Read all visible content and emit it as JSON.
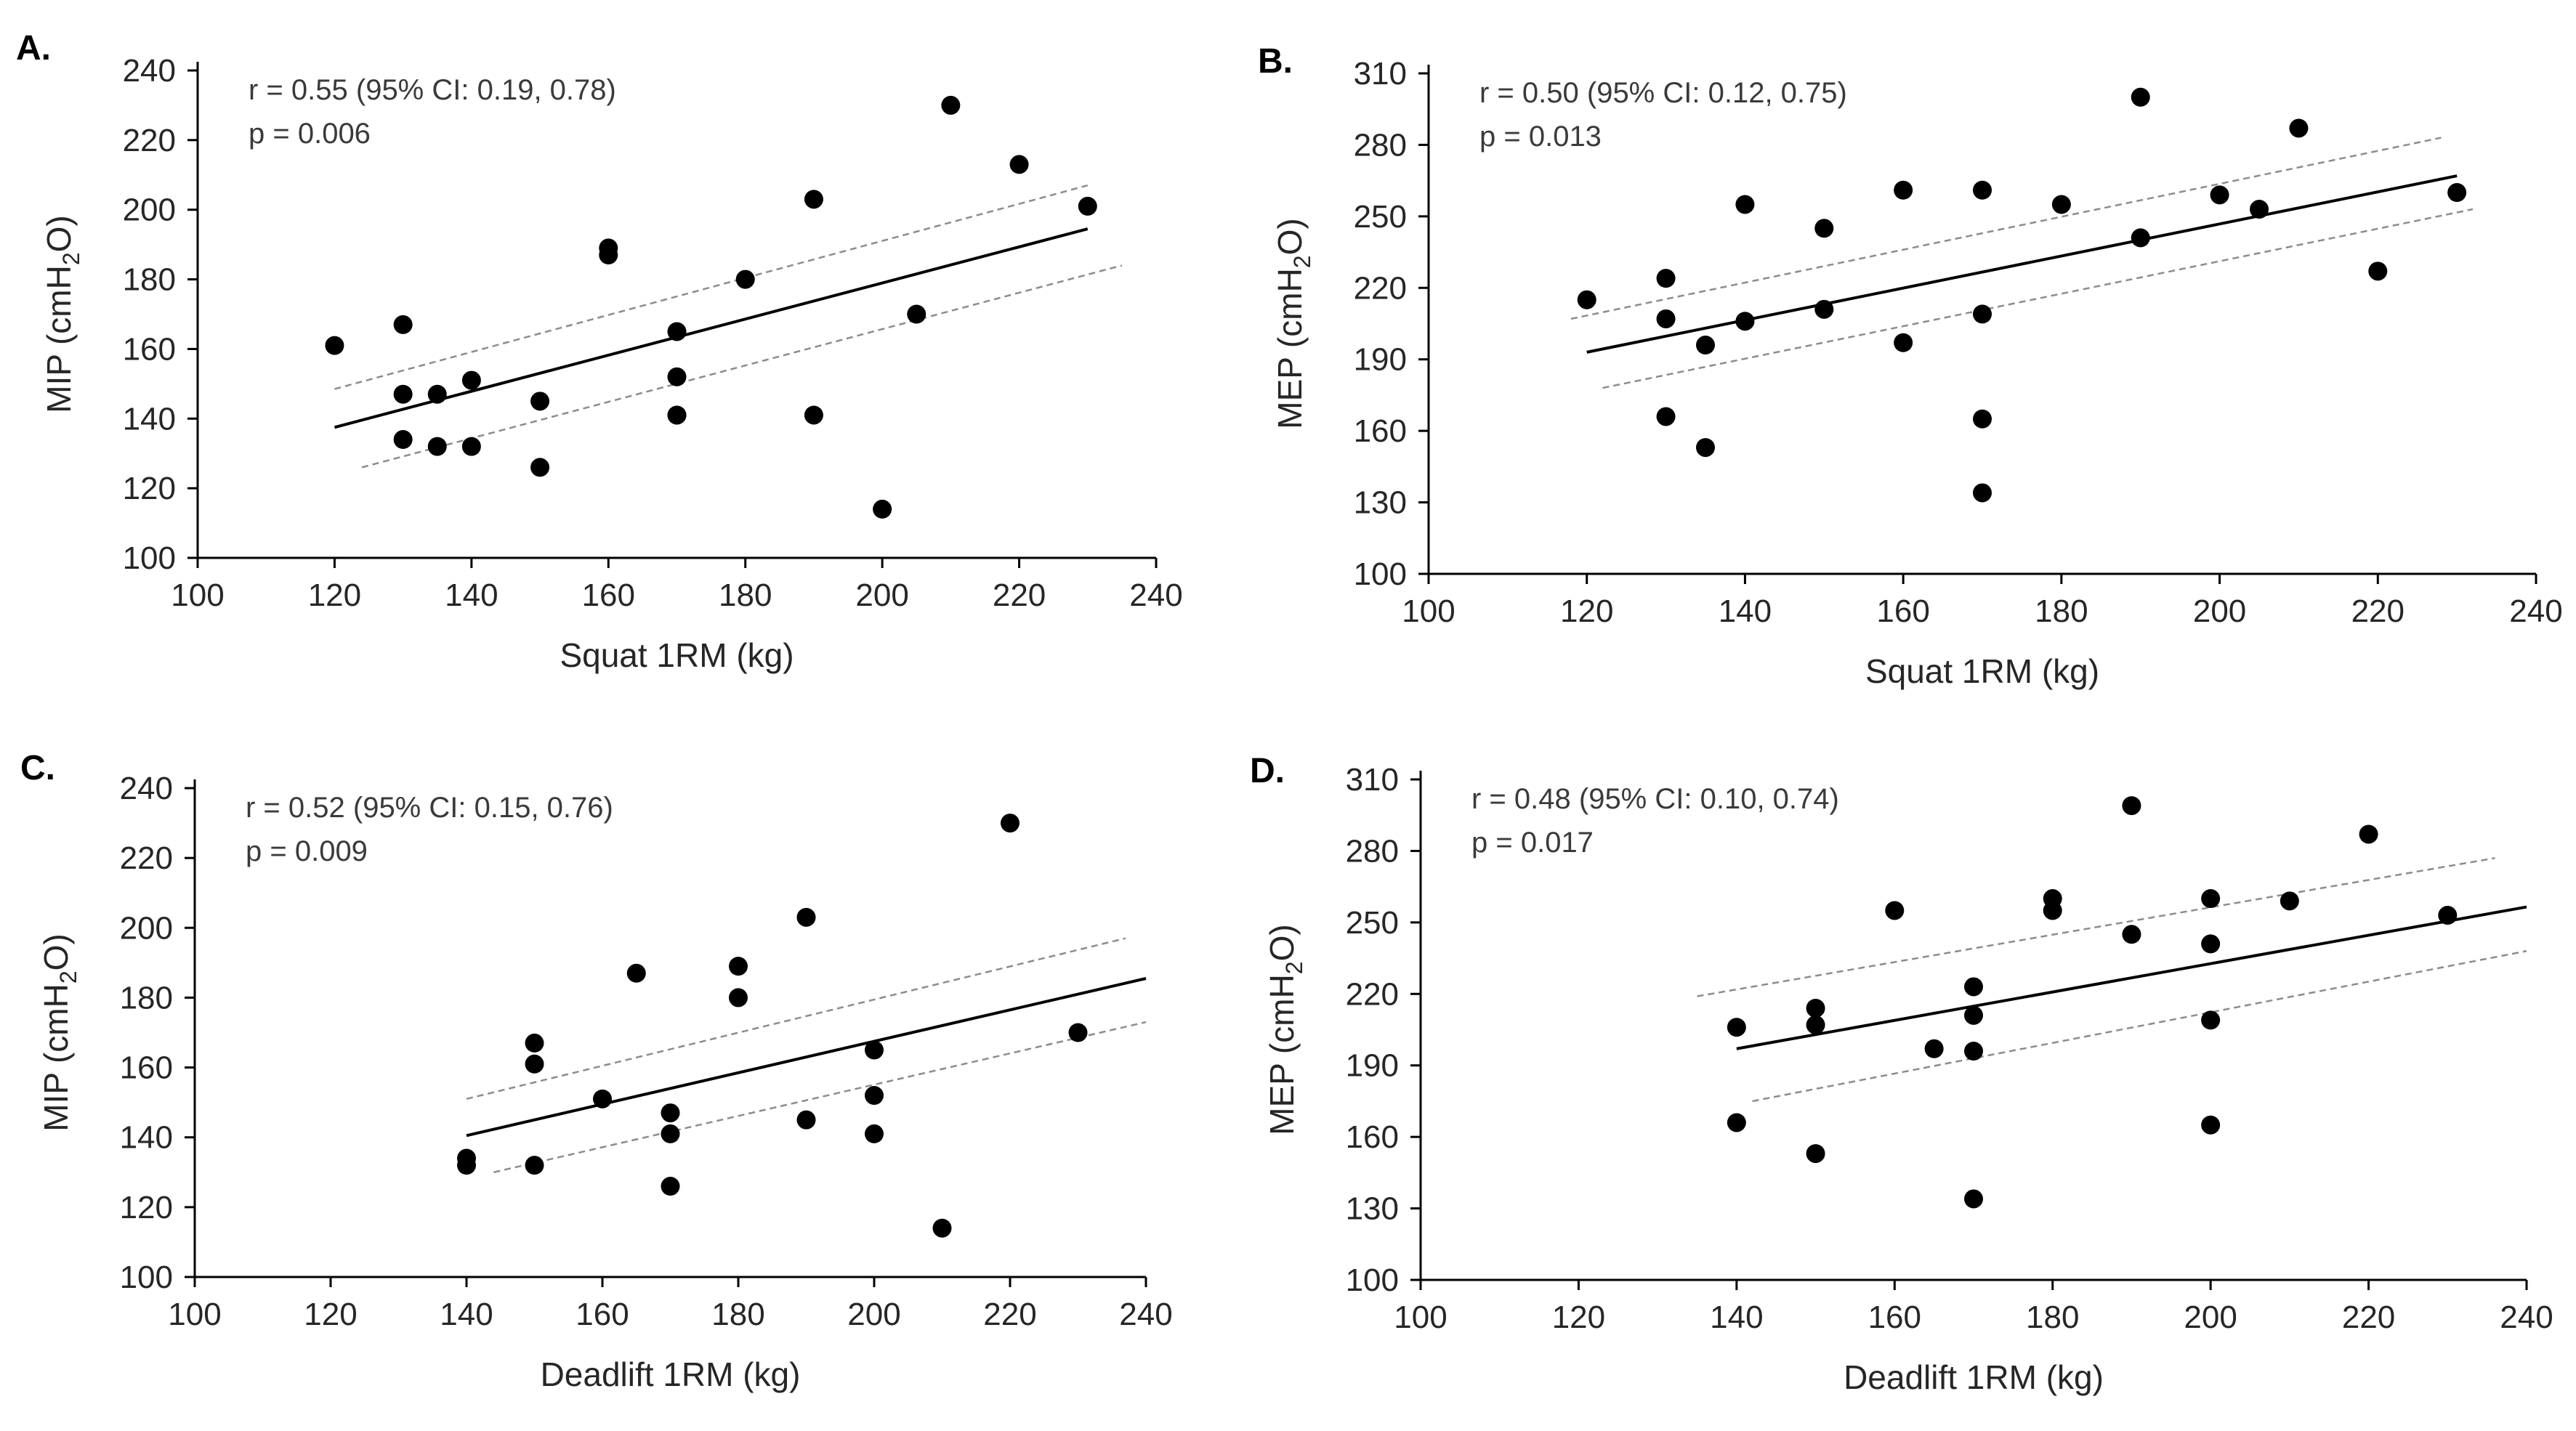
{
  "chart_data": [
    {
      "type": "scatter",
      "panel_label": "A.",
      "xlabel": "Squat 1RM (kg)",
      "ylabel": "MIP (cmH",
      "ylabel_sub": "2",
      "ylabel_end": "O)",
      "xlim": [
        100,
        240
      ],
      "ylim": [
        100,
        240
      ],
      "xticks": [
        "100",
        "120",
        "140",
        "160",
        "180",
        "200",
        "220",
        "240"
      ],
      "yticks": [
        "100",
        "120",
        "140",
        "160",
        "180",
        "200",
        "220",
        "240"
      ],
      "stats": [
        "r = 0.55 (95% CI: 0.19, 0.78)",
        "p = 0.006"
      ],
      "x": [
        120,
        130,
        130,
        130,
        135,
        135,
        140,
        140,
        150,
        150,
        160,
        160,
        170,
        170,
        170,
        170,
        180,
        190,
        190,
        200,
        205,
        210,
        220,
        230
      ],
      "y": [
        161,
        167,
        147,
        134,
        147,
        132,
        151,
        132,
        145,
        126,
        189,
        187,
        165,
        152,
        141,
        141,
        180,
        203,
        141,
        114,
        170,
        230,
        213,
        201
      ],
      "fit": {
        "x": [
          120,
          230
        ],
        "y": [
          137.5,
          194.5
        ]
      },
      "ci_upper": {
        "x": [
          120,
          230
        ],
        "y": [
          148.5,
          207
        ]
      },
      "ci_lower": {
        "x": [
          124,
          235
        ],
        "y": [
          126,
          184
        ]
      }
    },
    {
      "type": "scatter",
      "panel_label": "B.",
      "xlabel": "Squat 1RM (kg)",
      "ylabel": "MEP (cmH",
      "ylabel_sub": "2",
      "ylabel_end": "O)",
      "xlim": [
        100,
        240
      ],
      "ylim": [
        100,
        310
      ],
      "xticks": [
        "100",
        "120",
        "140",
        "160",
        "180",
        "200",
        "220",
        "240"
      ],
      "yticks": [
        "100",
        "130",
        "160",
        "190",
        "220",
        "250",
        "280",
        "310"
      ],
      "stats": [
        "r = 0.50 (95% CI: 0.12, 0.75)",
        "p = 0.013"
      ],
      "x": [
        120,
        130,
        130,
        130,
        135,
        135,
        140,
        140,
        150,
        150,
        160,
        160,
        170,
        170,
        170,
        170,
        180,
        190,
        190,
        200,
        205,
        210,
        220,
        230
      ],
      "y": [
        215,
        224,
        207,
        166,
        196,
        153,
        255,
        206,
        245,
        211,
        261,
        197,
        261,
        209,
        165,
        134,
        255,
        300,
        241,
        259,
        253,
        287,
        227,
        260
      ],
      "fit": {
        "x": [
          120,
          230
        ],
        "y": [
          193,
          267
        ]
      },
      "ci_upper": {
        "x": [
          118,
          228
        ],
        "y": [
          207,
          283
        ]
      },
      "ci_lower": {
        "x": [
          122,
          232
        ],
        "y": [
          178,
          253
        ]
      }
    },
    {
      "type": "scatter",
      "panel_label": "C.",
      "xlabel": "Deadlift 1RM (kg)",
      "ylabel": "MIP (cmH",
      "ylabel_sub": "2",
      "ylabel_end": "O)",
      "xlim": [
        100,
        240
      ],
      "ylim": [
        100,
        240
      ],
      "xticks": [
        "100",
        "120",
        "140",
        "160",
        "180",
        "200",
        "220",
        "240"
      ],
      "yticks": [
        "100",
        "120",
        "140",
        "160",
        "180",
        "200",
        "220",
        "240"
      ],
      "stats": [
        "r = 0.52 (95% CI: 0.15, 0.76)",
        "p = 0.009"
      ],
      "x": [
        140,
        140,
        150,
        150,
        150,
        160,
        165,
        170,
        170,
        170,
        180,
        180,
        190,
        190,
        200,
        200,
        200,
        210,
        220,
        230
      ],
      "y": [
        134,
        132,
        167,
        161,
        132,
        151,
        187,
        147,
        141,
        126,
        189,
        180,
        203,
        145,
        165,
        152,
        141,
        114,
        230,
        170
      ],
      "fit": {
        "x": [
          140,
          240
        ],
        "y": [
          140.5,
          185.5
        ]
      },
      "ci_upper": {
        "x": [
          140,
          237
        ],
        "y": [
          151,
          197
        ]
      },
      "ci_lower": {
        "x": [
          144,
          240
        ],
        "y": [
          130,
          173
        ]
      }
    },
    {
      "type": "scatter",
      "panel_label": "D.",
      "xlabel": "Deadlift 1RM (kg)",
      "ylabel": "MEP (cmH",
      "ylabel_sub": "2",
      "ylabel_end": "O)",
      "xlim": [
        100,
        240
      ],
      "ylim": [
        100,
        310
      ],
      "xticks": [
        "100",
        "120",
        "140",
        "160",
        "180",
        "200",
        "220",
        "240"
      ],
      "yticks": [
        "100",
        "130",
        "160",
        "190",
        "220",
        "250",
        "280",
        "310"
      ],
      "stats": [
        "r = 0.48 (95% CI: 0.10, 0.74)",
        "p = 0.017"
      ],
      "x": [
        140,
        140,
        150,
        150,
        150,
        160,
        165,
        170,
        170,
        170,
        170,
        180,
        180,
        190,
        190,
        200,
        200,
        200,
        200,
        210,
        220,
        230
      ],
      "y": [
        206,
        166,
        214,
        207,
        153,
        255,
        197,
        223,
        211,
        196,
        134,
        260,
        255,
        299,
        245,
        260,
        241,
        209,
        165,
        259,
        287,
        253
      ],
      "fit": {
        "x": [
          140,
          240
        ],
        "y": [
          197,
          256.5
        ]
      },
      "ci_upper": {
        "x": [
          135,
          236
        ],
        "y": [
          219,
          277
        ]
      },
      "ci_lower": {
        "x": [
          142,
          240
        ],
        "y": [
          175,
          238
        ]
      }
    }
  ]
}
